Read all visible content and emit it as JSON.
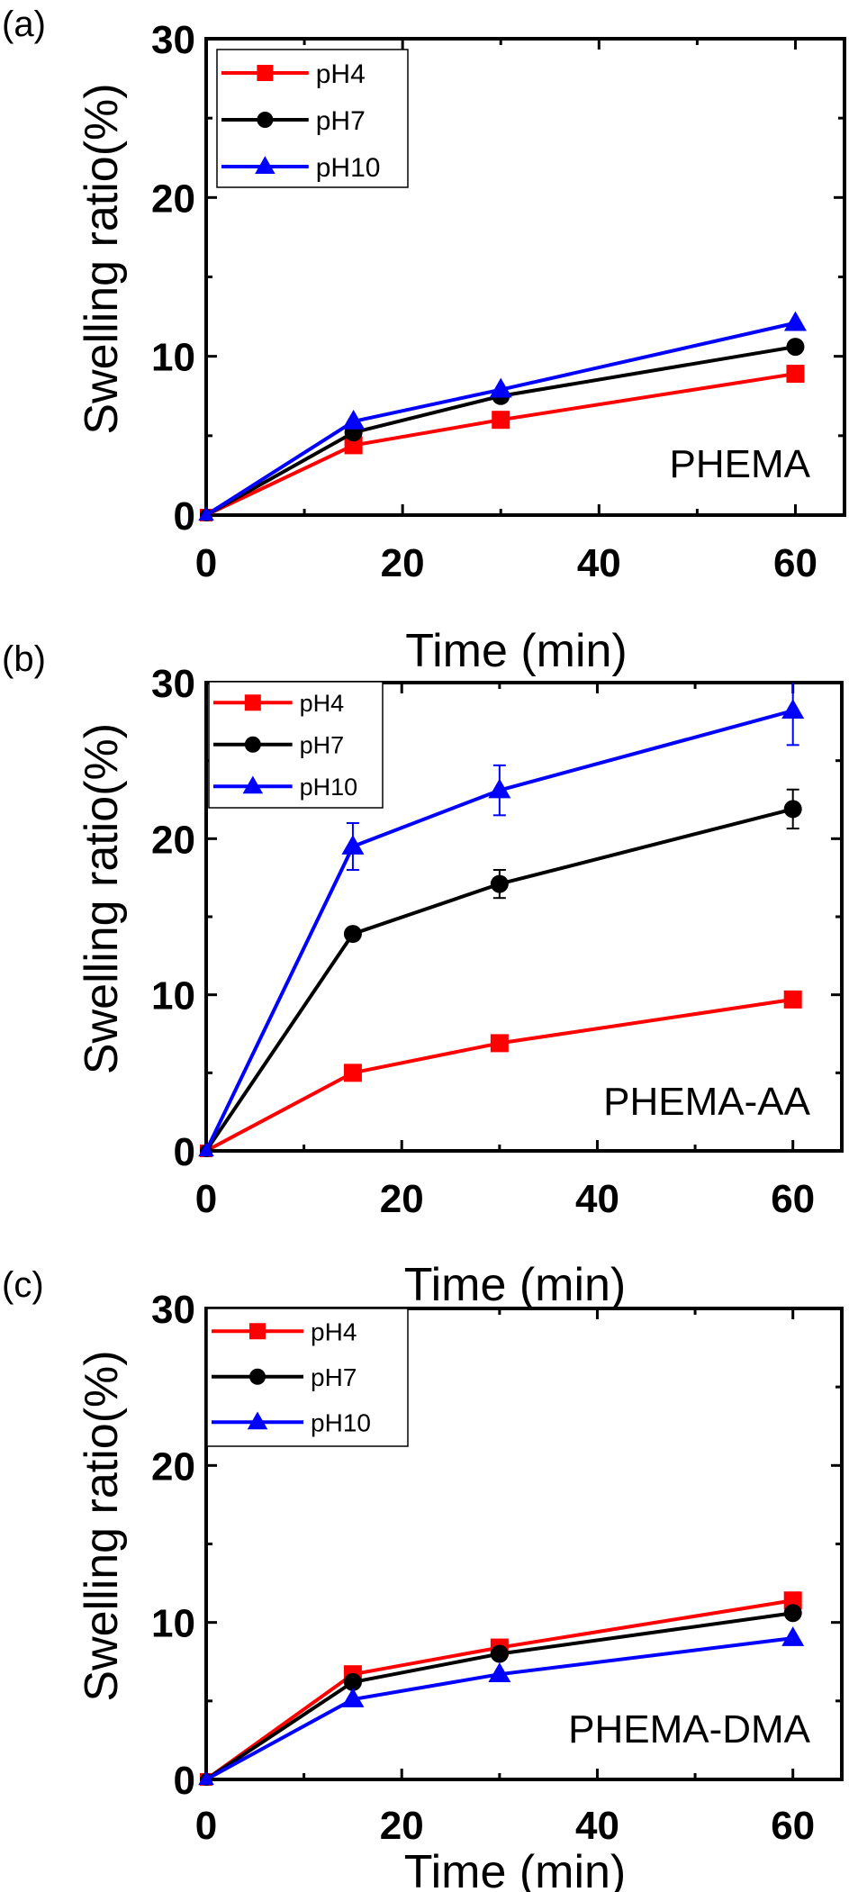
{
  "figure": {
    "series_styles": {
      "pH4": {
        "color": "#ff0000",
        "marker": "square"
      },
      "pH7": {
        "color": "#000000",
        "marker": "circle"
      },
      "pH10": {
        "color": "#0000ff",
        "marker": "triangle"
      }
    }
  },
  "chart_data": [
    {
      "type": "line",
      "panel_label": "(a)",
      "annotation": "PHEMA",
      "title": "",
      "xlabel": "Time (min)",
      "ylabel": "Swelling ratio(%)",
      "xlim": [
        0,
        65
      ],
      "ylim": [
        0,
        30
      ],
      "x_ticks": [
        0,
        20,
        40,
        60
      ],
      "y_ticks": [
        0,
        10,
        20,
        30
      ],
      "grid": false,
      "legend_position": "top-left",
      "x": [
        0,
        15,
        30,
        60
      ],
      "series": [
        {
          "name": "pH4",
          "values": [
            0,
            4.4,
            6.0,
            8.9
          ],
          "errors": [
            0,
            0,
            0,
            0
          ]
        },
        {
          "name": "pH7",
          "values": [
            0,
            5.2,
            7.5,
            10.6
          ],
          "errors": [
            0,
            0,
            0,
            0
          ]
        },
        {
          "name": "pH10",
          "values": [
            0,
            5.9,
            7.9,
            12.1
          ],
          "errors": [
            0,
            0,
            0,
            0
          ]
        }
      ]
    },
    {
      "type": "line",
      "panel_label": "(b)",
      "annotation": "PHEMA-AA",
      "title": "",
      "xlabel": "Time (min)",
      "ylabel": "Swelling ratio(%)",
      "xlim": [
        0,
        65
      ],
      "ylim": [
        0,
        30
      ],
      "x_ticks": [
        0,
        20,
        40,
        60
      ],
      "y_ticks": [
        0,
        10,
        20,
        30
      ],
      "grid": false,
      "legend_position": "top-left",
      "x": [
        0,
        15,
        30,
        60
      ],
      "series": [
        {
          "name": "pH4",
          "values": [
            0,
            5.0,
            6.9,
            9.7
          ],
          "errors": [
            0,
            0,
            0,
            0
          ]
        },
        {
          "name": "pH7",
          "values": [
            0,
            13.9,
            17.1,
            21.9
          ],
          "errors": [
            0,
            0,
            0.9,
            1.25
          ]
        },
        {
          "name": "pH10",
          "values": [
            0,
            19.5,
            23.1,
            28.2
          ],
          "errors": [
            0,
            1.5,
            1.6,
            2.2
          ]
        }
      ]
    },
    {
      "type": "line",
      "panel_label": "(c)",
      "annotation": "PHEMA-DMA",
      "title": "",
      "xlabel": "Time (min)",
      "ylabel": "Swelling ratio(%)",
      "xlim": [
        0,
        65
      ],
      "ylim": [
        0,
        30
      ],
      "x_ticks": [
        0,
        20,
        40,
        60
      ],
      "y_ticks": [
        0,
        10,
        20,
        30
      ],
      "grid": false,
      "legend_position": "top-left",
      "x": [
        0,
        15,
        30,
        60
      ],
      "series": [
        {
          "name": "pH4",
          "values": [
            0,
            6.7,
            8.4,
            11.4
          ],
          "errors": [
            0,
            0,
            0,
            0
          ]
        },
        {
          "name": "pH7",
          "values": [
            0,
            6.2,
            8.0,
            10.6
          ],
          "errors": [
            0,
            0,
            0,
            0
          ]
        },
        {
          "name": "pH10",
          "values": [
            0,
            5.1,
            6.7,
            9.0
          ],
          "errors": [
            0,
            0,
            0,
            0
          ]
        }
      ]
    }
  ]
}
